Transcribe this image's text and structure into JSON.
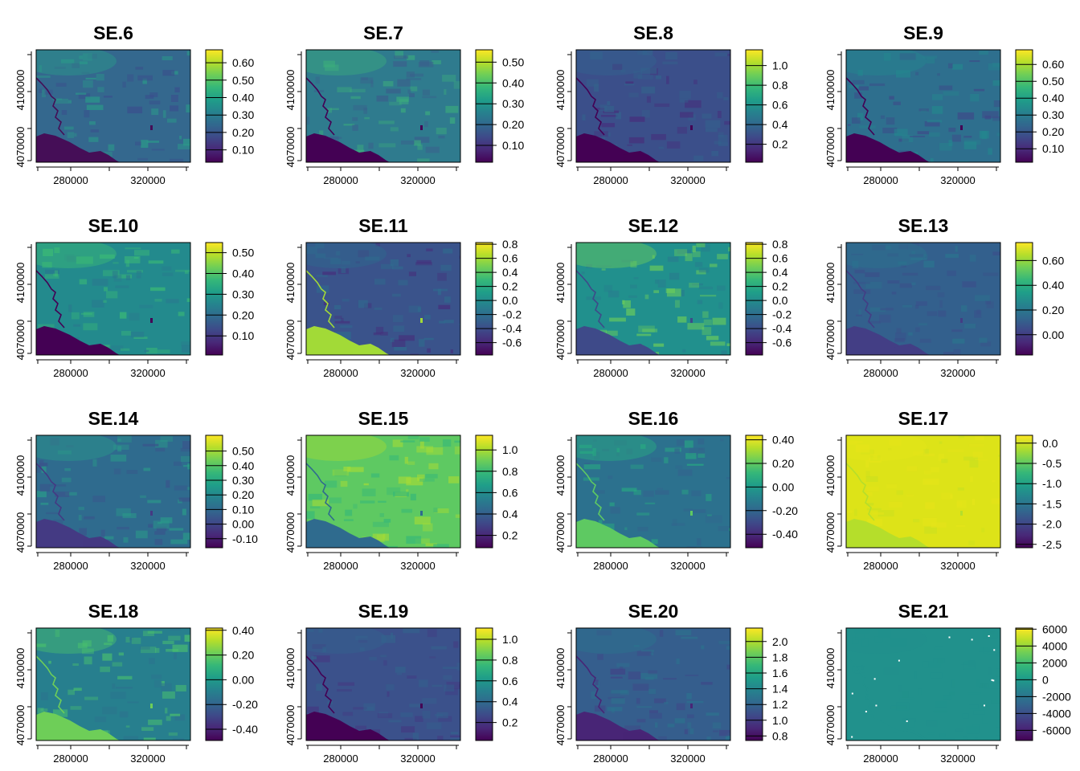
{
  "chart_data": [
    {
      "type": "heatmap",
      "title": "SE.6",
      "x_ticks": [
        "280000",
        "320000"
      ],
      "y_ticks": [
        "4070000",
        "4100000"
      ],
      "colorbar": {
        "ticks": [
          "0.10",
          "0.20",
          "0.30",
          "0.40",
          "0.50",
          "0.60"
        ],
        "ticks_at_fraction": [
          0.11,
          0.265,
          0.42,
          0.575,
          0.73,
          0.885
        ]
      },
      "colors": {
        "base": "#34688e",
        "hi": "#2a9c89",
        "lo": "#3a4e8c",
        "water": "#450e57"
      }
    },
    {
      "type": "heatmap",
      "title": "SE.7",
      "x_ticks": [
        "280000",
        "320000"
      ],
      "y_ticks": [
        "4070000",
        "4100000"
      ],
      "colorbar": {
        "ticks": [
          "0.10",
          "0.20",
          "0.30",
          "0.40",
          "0.50"
        ],
        "ticks_at_fraction": [
          0.15,
          0.335,
          0.52,
          0.705,
          0.89
        ]
      },
      "colors": {
        "base": "#2f7b8e",
        "hi": "#3cae7c",
        "lo": "#3a5f8c",
        "water": "#440154"
      }
    },
    {
      "type": "heatmap",
      "title": "SE.8",
      "x_ticks": [
        "280000",
        "320000"
      ],
      "y_ticks": [
        "4070000",
        "4100000"
      ],
      "colorbar": {
        "ticks": [
          "0.2",
          "0.4",
          "0.6",
          "0.8",
          "1.0"
        ],
        "ticks_at_fraction": [
          0.16,
          0.335,
          0.51,
          0.685,
          0.86
        ]
      },
      "colors": {
        "base": "#3b4f8a",
        "hi": "#33638d",
        "lo": "#472d7b",
        "water": "#440154"
      }
    },
    {
      "type": "heatmap",
      "title": "SE.9",
      "x_ticks": [
        "280000",
        "320000"
      ],
      "y_ticks": [
        "4070000",
        "4100000"
      ],
      "colorbar": {
        "ticks": [
          "0.10",
          "0.20",
          "0.30",
          "0.40",
          "0.50",
          "0.60"
        ],
        "ticks_at_fraction": [
          0.12,
          0.27,
          0.42,
          0.57,
          0.72,
          0.87
        ]
      },
      "colors": {
        "base": "#2e6f8e",
        "hi": "#24878e",
        "lo": "#3f4788",
        "water": "#440154"
      }
    },
    {
      "type": "heatmap",
      "title": "SE.10",
      "x_ticks": [
        "280000",
        "320000"
      ],
      "y_ticks": [
        "4070000",
        "4100000"
      ],
      "colorbar": {
        "ticks": [
          "0.10",
          "0.20",
          "0.30",
          "0.40",
          "0.50"
        ],
        "ticks_at_fraction": [
          0.17,
          0.355,
          0.54,
          0.725,
          0.91
        ]
      },
      "colors": {
        "base": "#238a8d",
        "hi": "#3bbb75",
        "lo": "#2a788e",
        "water": "#440154"
      }
    },
    {
      "type": "heatmap",
      "title": "SE.11",
      "x_ticks": [
        "280000",
        "320000"
      ],
      "y_ticks": [
        "4070000",
        "4100000"
      ],
      "colorbar": {
        "ticks": [
          "-0.6",
          "-0.4",
          "-0.2",
          "0.0",
          "0.2",
          "0.4",
          "0.6",
          "0.8"
        ],
        "ticks_at_fraction": [
          0.11,
          0.235,
          0.36,
          0.485,
          0.61,
          0.735,
          0.86,
          0.985
        ]
      },
      "colors": {
        "base": "#3a538b",
        "hi": "#2f6b8e",
        "lo": "#472c7a",
        "water": "#a2da37"
      }
    },
    {
      "type": "heatmap",
      "title": "SE.12",
      "x_ticks": [
        "280000",
        "320000"
      ],
      "y_ticks": [
        "4070000",
        "4100000"
      ],
      "colorbar": {
        "ticks": [
          "-0.6",
          "-0.4",
          "-0.2",
          "0.0",
          "0.2",
          "0.4",
          "0.6",
          "0.8"
        ],
        "ticks_at_fraction": [
          0.11,
          0.235,
          0.36,
          0.485,
          0.61,
          0.735,
          0.86,
          0.985
        ]
      },
      "colors": {
        "base": "#21908d",
        "hi": "#6ccd5a",
        "lo": "#287d8e",
        "water": "#3e4a89"
      }
    },
    {
      "type": "heatmap",
      "title": "SE.13",
      "x_ticks": [
        "280000",
        "320000"
      ],
      "y_ticks": [
        "4070000",
        "4100000"
      ],
      "colorbar": {
        "ticks": [
          "0.00",
          "0.20",
          "0.40",
          "0.60"
        ],
        "ticks_at_fraction": [
          0.18,
          0.4,
          0.62,
          0.84
        ]
      },
      "colors": {
        "base": "#33608d",
        "hi": "#2b758e",
        "lo": "#3b4f8a",
        "water": "#433e85"
      }
    },
    {
      "type": "heatmap",
      "title": "SE.14",
      "x_ticks": [
        "280000",
        "320000"
      ],
      "y_ticks": [
        "4070000",
        "4100000"
      ],
      "colorbar": {
        "ticks": [
          "-0.10",
          "0.00",
          "0.10",
          "0.20",
          "0.30",
          "0.40",
          "0.50"
        ],
        "ticks_at_fraction": [
          0.08,
          0.21,
          0.34,
          0.47,
          0.6,
          0.73,
          0.86
        ]
      },
      "colors": {
        "base": "#2f6b8e",
        "hi": "#2a9c89",
        "lo": "#3b528b",
        "water": "#443a83"
      }
    },
    {
      "type": "heatmap",
      "title": "SE.15",
      "x_ticks": [
        "280000",
        "320000"
      ],
      "y_ticks": [
        "4070000",
        "4100000"
      ],
      "colorbar": {
        "ticks": [
          "0.2",
          "0.4",
          "0.6",
          "0.8",
          "1.0"
        ],
        "ticks_at_fraction": [
          0.11,
          0.3,
          0.49,
          0.68,
          0.87
        ]
      },
      "colors": {
        "base": "#5ec962",
        "hi": "#a5db36",
        "lo": "#35b779",
        "water": "#2f6b8e"
      }
    },
    {
      "type": "heatmap",
      "title": "SE.16",
      "x_ticks": [
        "280000",
        "320000"
      ],
      "y_ticks": [
        "4070000",
        "4100000"
      ],
      "colorbar": {
        "ticks": [
          "-0.40",
          "-0.20",
          "0.00",
          "0.20",
          "0.40"
        ],
        "ticks_at_fraction": [
          0.12,
          0.33,
          0.54,
          0.75,
          0.96
        ]
      },
      "colors": {
        "base": "#2c718e",
        "hi": "#27ad81",
        "lo": "#33638d",
        "water": "#5ec962"
      }
    },
    {
      "type": "heatmap",
      "title": "SE.17",
      "x_ticks": [
        "280000",
        "320000"
      ],
      "y_ticks": [
        "4070000",
        "4100000"
      ],
      "colorbar": {
        "ticks": [
          "-2.5",
          "-2.0",
          "-1.5",
          "-1.0",
          "-0.5",
          "0.0"
        ],
        "ticks_at_fraction": [
          0.03,
          0.21,
          0.39,
          0.57,
          0.75,
          0.93
        ]
      },
      "colors": {
        "base": "#dde318",
        "hi": "#e5e419",
        "lo": "#c8e020",
        "water": "#b5de2b"
      }
    },
    {
      "type": "heatmap",
      "title": "SE.18",
      "x_ticks": [
        "280000",
        "320000"
      ],
      "y_ticks": [
        "4070000",
        "4100000"
      ],
      "colorbar": {
        "ticks": [
          "-0.40",
          "-0.20",
          "0.00",
          "0.20",
          "0.40"
        ],
        "ticks_at_fraction": [
          0.1,
          0.32,
          0.54,
          0.76,
          0.98
        ]
      },
      "colors": {
        "base": "#277f8e",
        "hi": "#4ac16d",
        "lo": "#2c728e",
        "water": "#6ece58"
      }
    },
    {
      "type": "heatmap",
      "title": "SE.19",
      "x_ticks": [
        "280000",
        "320000"
      ],
      "y_ticks": [
        "4070000",
        "4100000"
      ],
      "colorbar": {
        "ticks": [
          "0.2",
          "0.4",
          "0.6",
          "0.8",
          "1.0"
        ],
        "ticks_at_fraction": [
          0.16,
          0.345,
          0.53,
          0.715,
          0.9
        ]
      },
      "colors": {
        "base": "#3b518b",
        "hi": "#33638d",
        "lo": "#453781",
        "water": "#440154"
      }
    },
    {
      "type": "heatmap",
      "title": "SE.20",
      "x_ticks": [
        "280000",
        "320000"
      ],
      "y_ticks": [
        "4070000",
        "4100000"
      ],
      "colorbar": {
        "ticks": [
          "0.8",
          "1.0",
          "1.2",
          "1.4",
          "1.6",
          "1.8",
          "2.0"
        ],
        "ticks_at_fraction": [
          0.04,
          0.18,
          0.32,
          0.46,
          0.6,
          0.74,
          0.88
        ]
      },
      "colors": {
        "base": "#355e8d",
        "hi": "#2b758e",
        "lo": "#414487",
        "water": "#482576"
      }
    },
    {
      "type": "heatmap",
      "title": "SE.21",
      "x_ticks": [
        "280000",
        "320000"
      ],
      "y_ticks": [
        "4070000",
        "4100000"
      ],
      "colorbar": {
        "ticks": [
          "-6000",
          "-4000",
          "-2000",
          "0",
          "2000",
          "4000",
          "6000"
        ],
        "ticks_at_fraction": [
          0.09,
          0.24,
          0.39,
          0.54,
          0.69,
          0.84,
          0.99
        ]
      },
      "colors": {
        "base": "#21918c",
        "hi": "#21918c",
        "lo": "#21918c",
        "water": "#21918c"
      }
    }
  ]
}
